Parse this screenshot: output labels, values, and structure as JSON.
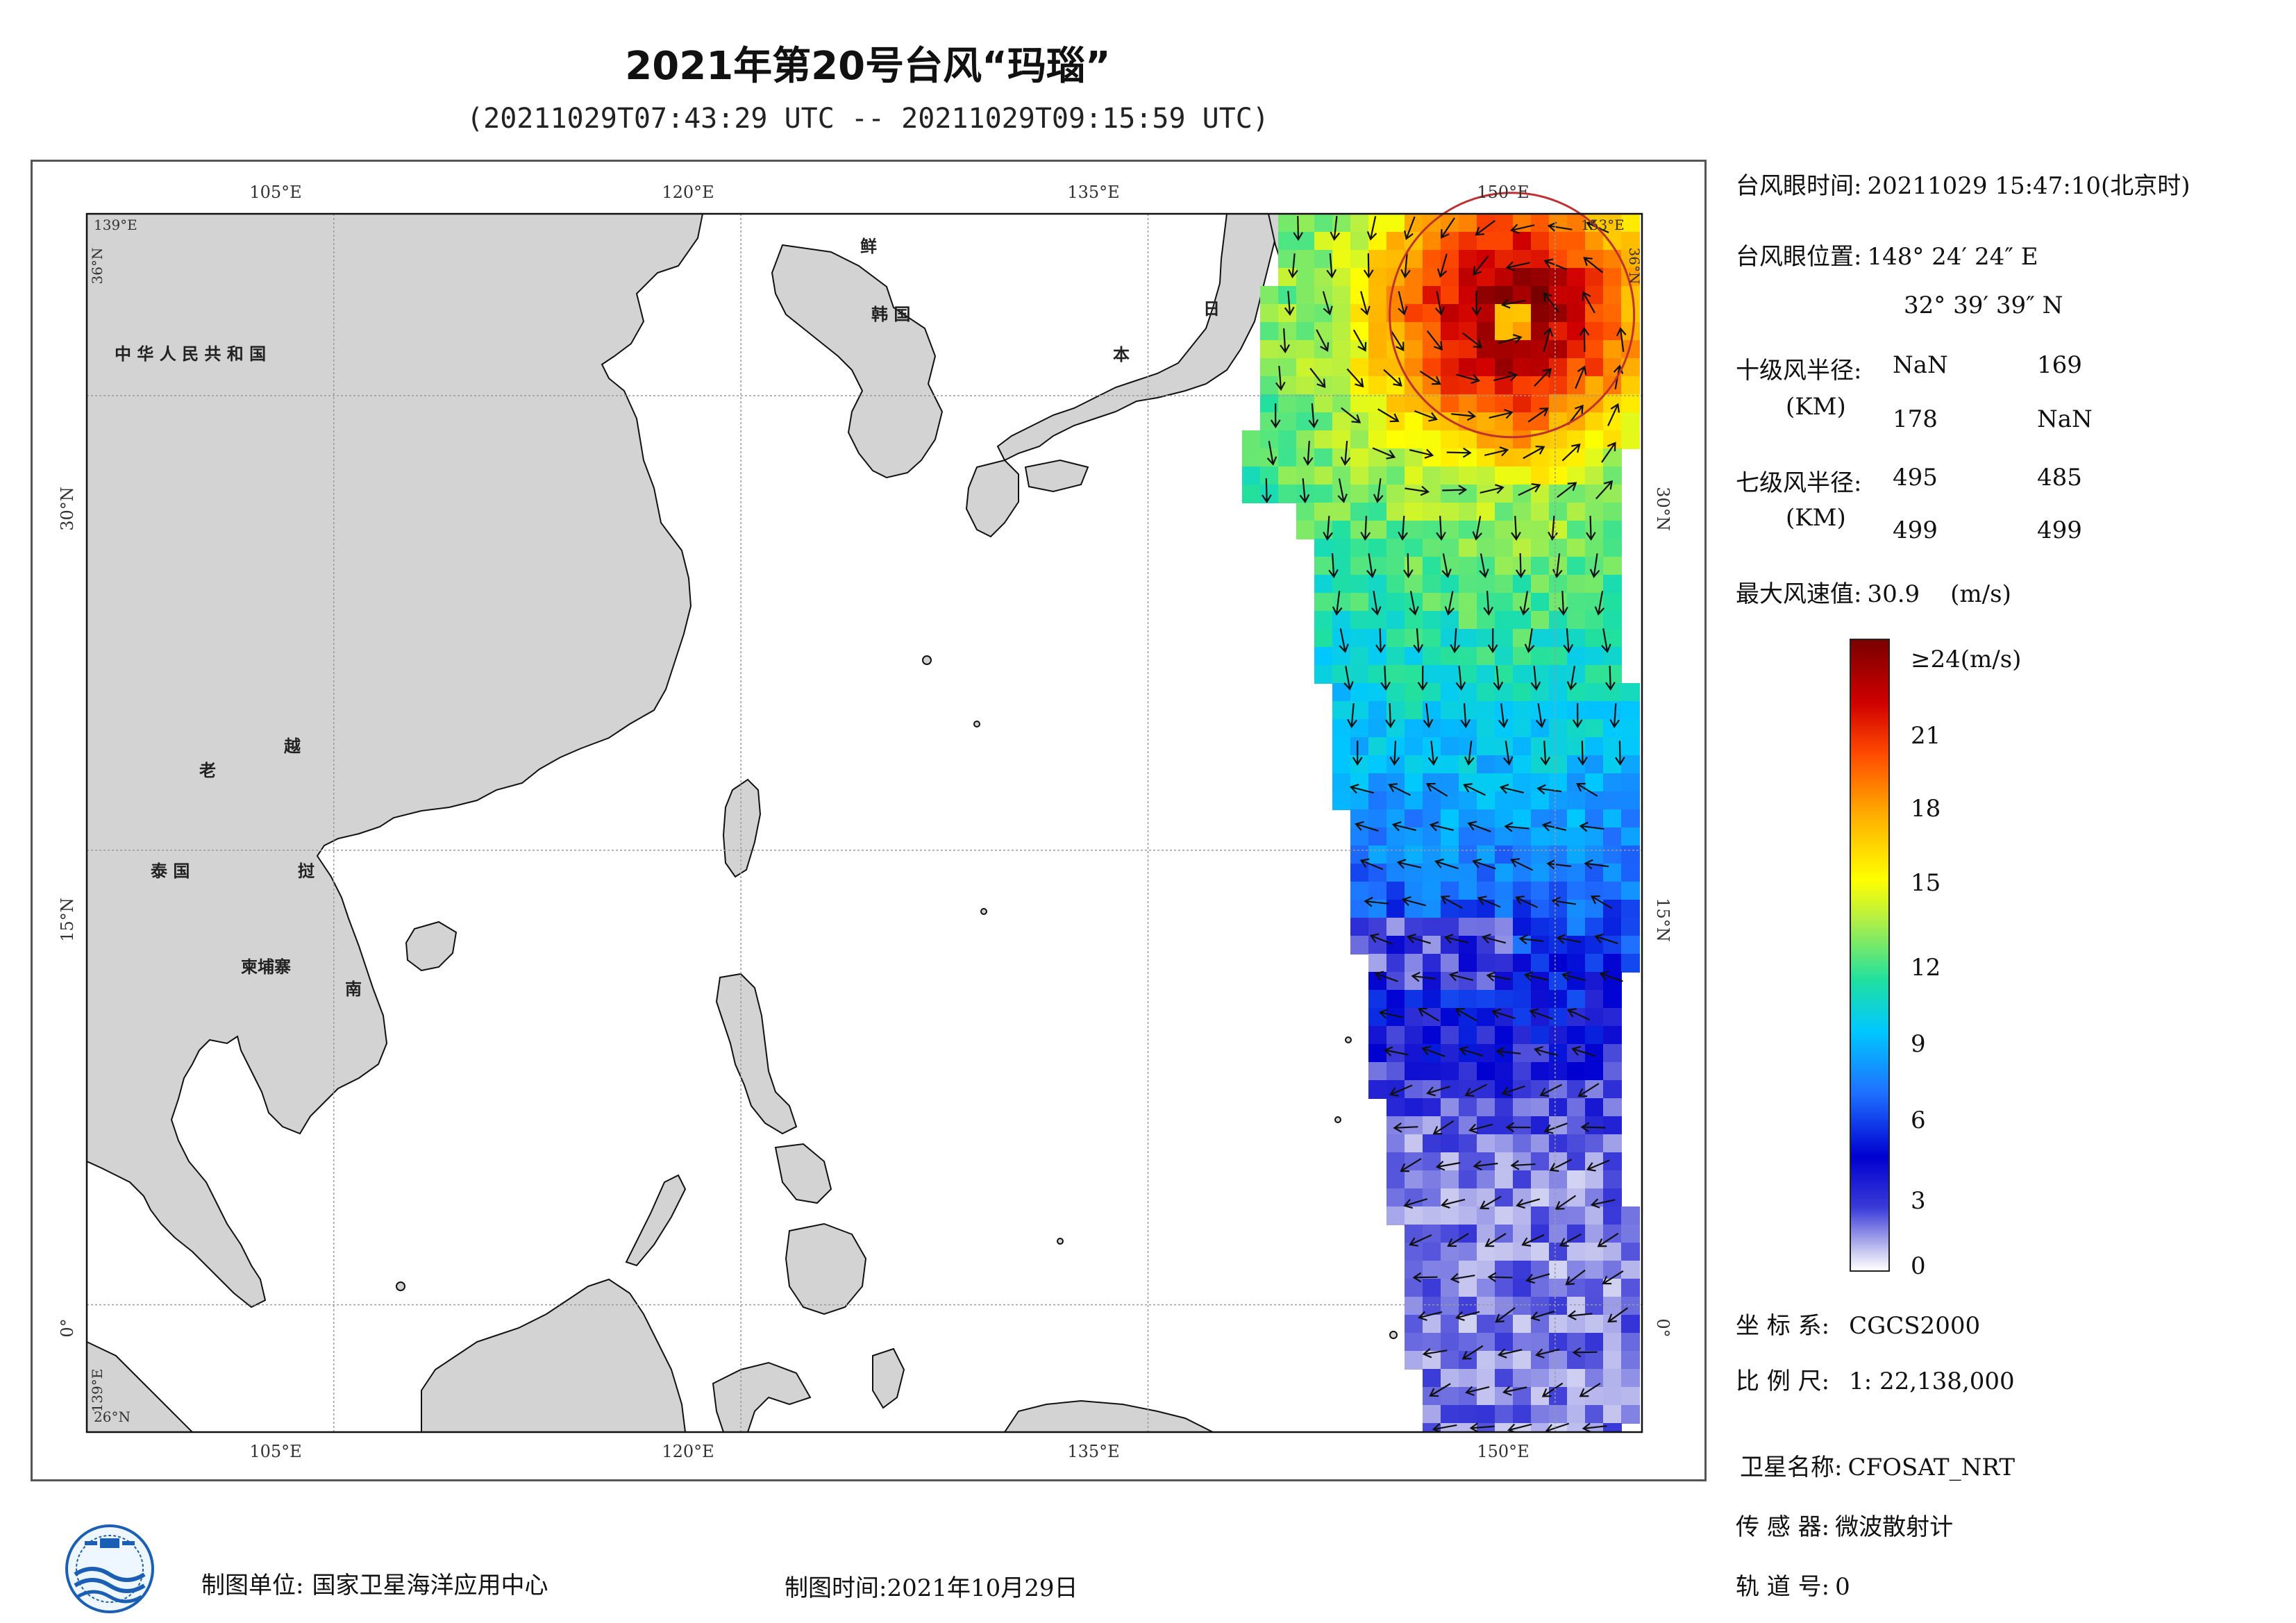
{
  "header": {
    "title": "2021年第20号台风“玛瑙”",
    "subtitle": "(20211029T07:43:29 UTC -- 20211029T09:15:59 UTC)"
  },
  "map": {
    "lon_labels": [
      "105°E",
      "120°E",
      "135°E",
      "150°E"
    ],
    "lat_labels": [
      "30°N",
      "15°N",
      "0°"
    ],
    "corner_labels": {
      "top_left_lon": "139°E",
      "top_right_lon": "153°E",
      "top_left_lat": "36°N",
      "top_right_lat": "36°N",
      "bottom_left_lat": "26°N",
      "bottom_left_lon": "139°E"
    },
    "countries": {
      "china": "中 华 人 民 共 和 国",
      "korea_n": "鲜",
      "korea_s": "韩  国",
      "japan1": "日",
      "japan2": "本",
      "laos": "老",
      "vietnam1": "越",
      "thailand": "泰  国",
      "vietnam2": "挝",
      "cambodia": "柬埔寨",
      "vietnam3": "南"
    },
    "colors": {
      "land": "#d3d3d3",
      "sea": "#ffffff",
      "typhoon_circle": "#c03030"
    },
    "typhoon_eye": {
      "lon": 148.4067,
      "lat": 32.6608
    }
  },
  "info": {
    "eye_time_label": "台风眼时间:",
    "eye_time_value": "20211029 15:47:10(北京时)",
    "eye_pos_label": "台风眼位置:",
    "eye_pos_lon": "148° 24′ 24″ E",
    "eye_pos_lat": "32° 39′ 39″ N",
    "r10_label": "十级风半径:",
    "r10_unit": "(KM)",
    "r10_values": [
      "NaN",
      "169",
      "178",
      "NaN"
    ],
    "r7_label": "七级风半径:",
    "r7_unit": "(KM)",
    "r7_values": [
      "495",
      "485",
      "499",
      "499"
    ],
    "max_wind_label": "最大风速值:",
    "max_wind_value": "30.9",
    "max_wind_unit": "(m/s)",
    "crs_label": "坐 标 系:",
    "crs_value": "CGCS2000",
    "scale_label": "比 例 尺:",
    "scale_value": "1: 22,138,000",
    "sat_label": "卫星名称:",
    "sat_value": "CFOSAT_NRT",
    "sensor_label": "传 感 器:",
    "sensor_value": "微波散射计",
    "orbit_label": "轨 道 号:",
    "orbit_value": "0"
  },
  "colorbar": {
    "unit_label": "≥24(m/s)",
    "ticks": [
      "21",
      "18",
      "15",
      "12",
      "9",
      "6",
      "3",
      "0"
    ],
    "min": 0,
    "max": 24
  },
  "footer": {
    "producer_label": "制图单位:",
    "producer_value": "国家卫星海洋应用中心",
    "date_label": "制图时间:",
    "date_value": "2021年10月29日"
  }
}
